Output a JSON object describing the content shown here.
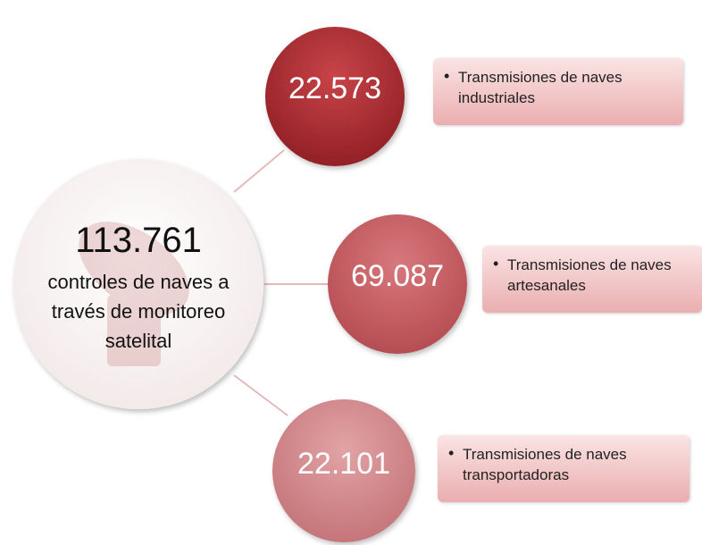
{
  "center": {
    "value": "113.761",
    "label": "controles de naves a través de monitoreo satelital"
  },
  "branches": [
    {
      "value": "22.573",
      "label": "Transmisiones de naves industriales"
    },
    {
      "value": "69.087",
      "label": "Transmisiones de naves artesanales"
    },
    {
      "value": "22.101",
      "label": "Transmisiones de naves transportadoras"
    }
  ]
}
